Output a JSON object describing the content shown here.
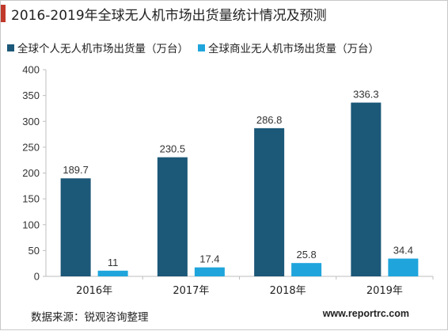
{
  "title": "2016-2019年全球无人机市场出货量统计情况及预测",
  "source": "数据来源：锐观咨询整理",
  "website": "www.reportrc.com",
  "colors": {
    "accent": "#c0392b",
    "consumer": "#1c5878",
    "commercial": "#1fa5dc"
  },
  "chart_data": {
    "type": "bar",
    "categories": [
      "2016年",
      "2017年",
      "2018年",
      "2019年"
    ],
    "series": [
      {
        "name": "全球个人无人机市场出货量（万台）",
        "values": [
          189.7,
          230.5,
          286.8,
          336.3
        ]
      },
      {
        "name": "全球商业无人机市场出货量（万台）",
        "values": [
          11,
          17.4,
          25.8,
          34.4
        ]
      }
    ],
    "ylim": [
      0,
      400
    ],
    "yticks": [
      "0",
      "50",
      "100",
      "150",
      "200",
      "250",
      "300",
      "350",
      "400"
    ],
    "data_labels": [
      [
        "189.7",
        "230.5",
        "286.8",
        "336.3"
      ],
      [
        "11",
        "17.4",
        "25.8",
        "34.4"
      ]
    ],
    "grid": false,
    "legend": "top-left"
  }
}
